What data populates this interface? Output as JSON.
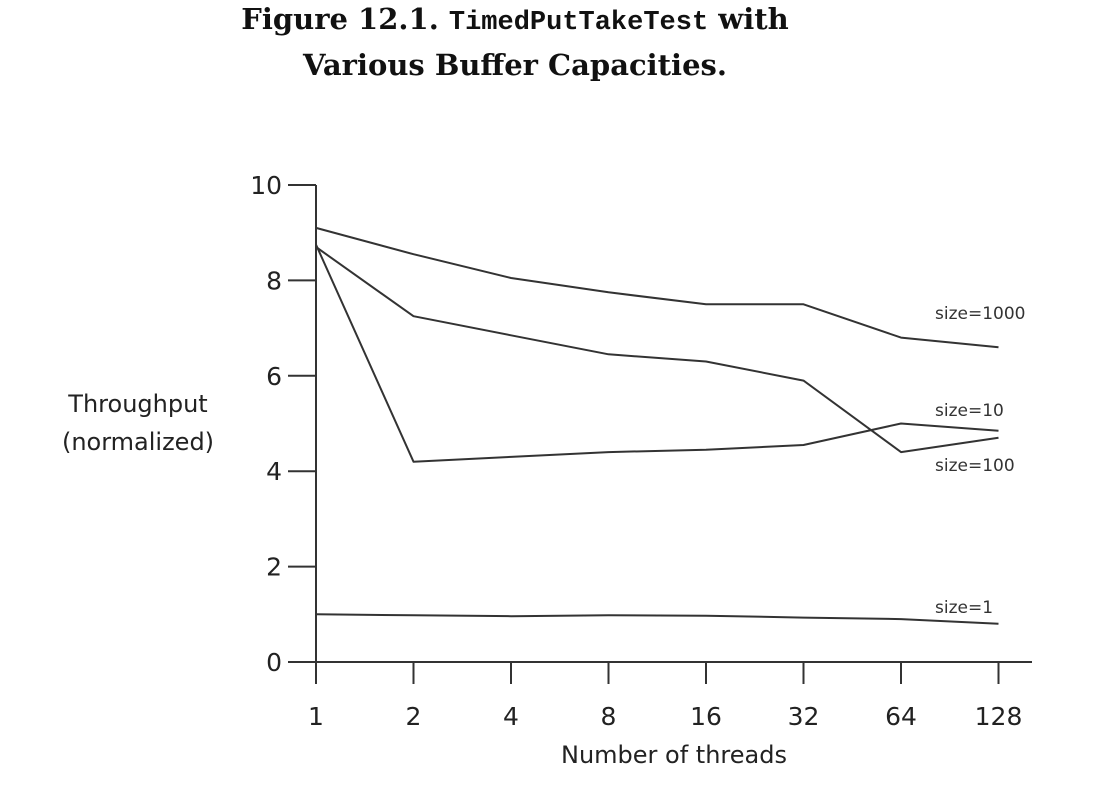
{
  "figure": {
    "caption_prefix": "Figure 12.1.",
    "caption_code": "TimedPutTakeTest",
    "caption_suffix": "with",
    "caption_line2": "Various Buffer Capacities."
  },
  "chart_data": {
    "type": "line",
    "title": "",
    "xlabel": "Number of threads",
    "ylabel_line1": "Throughput",
    "ylabel_line2": "(normalized)",
    "categories": [
      "1",
      "2",
      "4",
      "8",
      "16",
      "32",
      "64",
      "128"
    ],
    "ylim": [
      0,
      10
    ],
    "yticks": [
      0,
      2,
      4,
      6,
      8,
      10
    ],
    "grid": false,
    "legend": "inline-right",
    "series": [
      {
        "name": "size=1000",
        "values": [
          9.1,
          8.55,
          8.05,
          7.75,
          7.5,
          7.5,
          6.8,
          6.6
        ]
      },
      {
        "name": "size=10",
        "values": [
          8.75,
          4.2,
          4.3,
          4.4,
          4.45,
          4.55,
          5.0,
          4.85
        ]
      },
      {
        "name": "size=100",
        "values": [
          8.7,
          7.25,
          6.85,
          6.45,
          6.3,
          5.9,
          4.4,
          4.7
        ]
      },
      {
        "name": "size=1",
        "values": [
          1.0,
          0.98,
          0.96,
          0.98,
          0.97,
          0.93,
          0.9,
          0.8
        ]
      }
    ]
  }
}
